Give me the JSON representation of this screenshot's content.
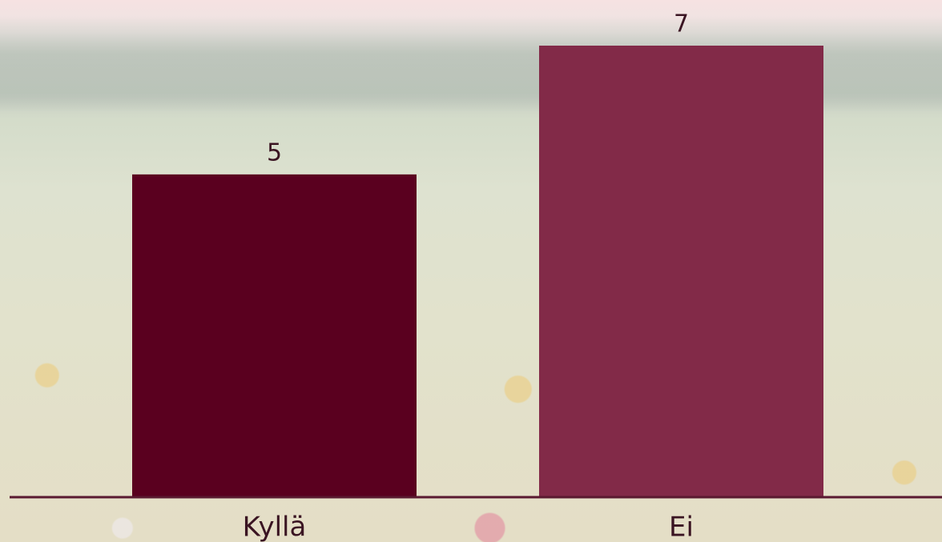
{
  "chart_data": {
    "type": "bar",
    "categories": [
      "Kyllä",
      "Ei"
    ],
    "values": [
      5,
      7
    ],
    "colors": [
      "#5a001f",
      "#822a48"
    ]
  }
}
